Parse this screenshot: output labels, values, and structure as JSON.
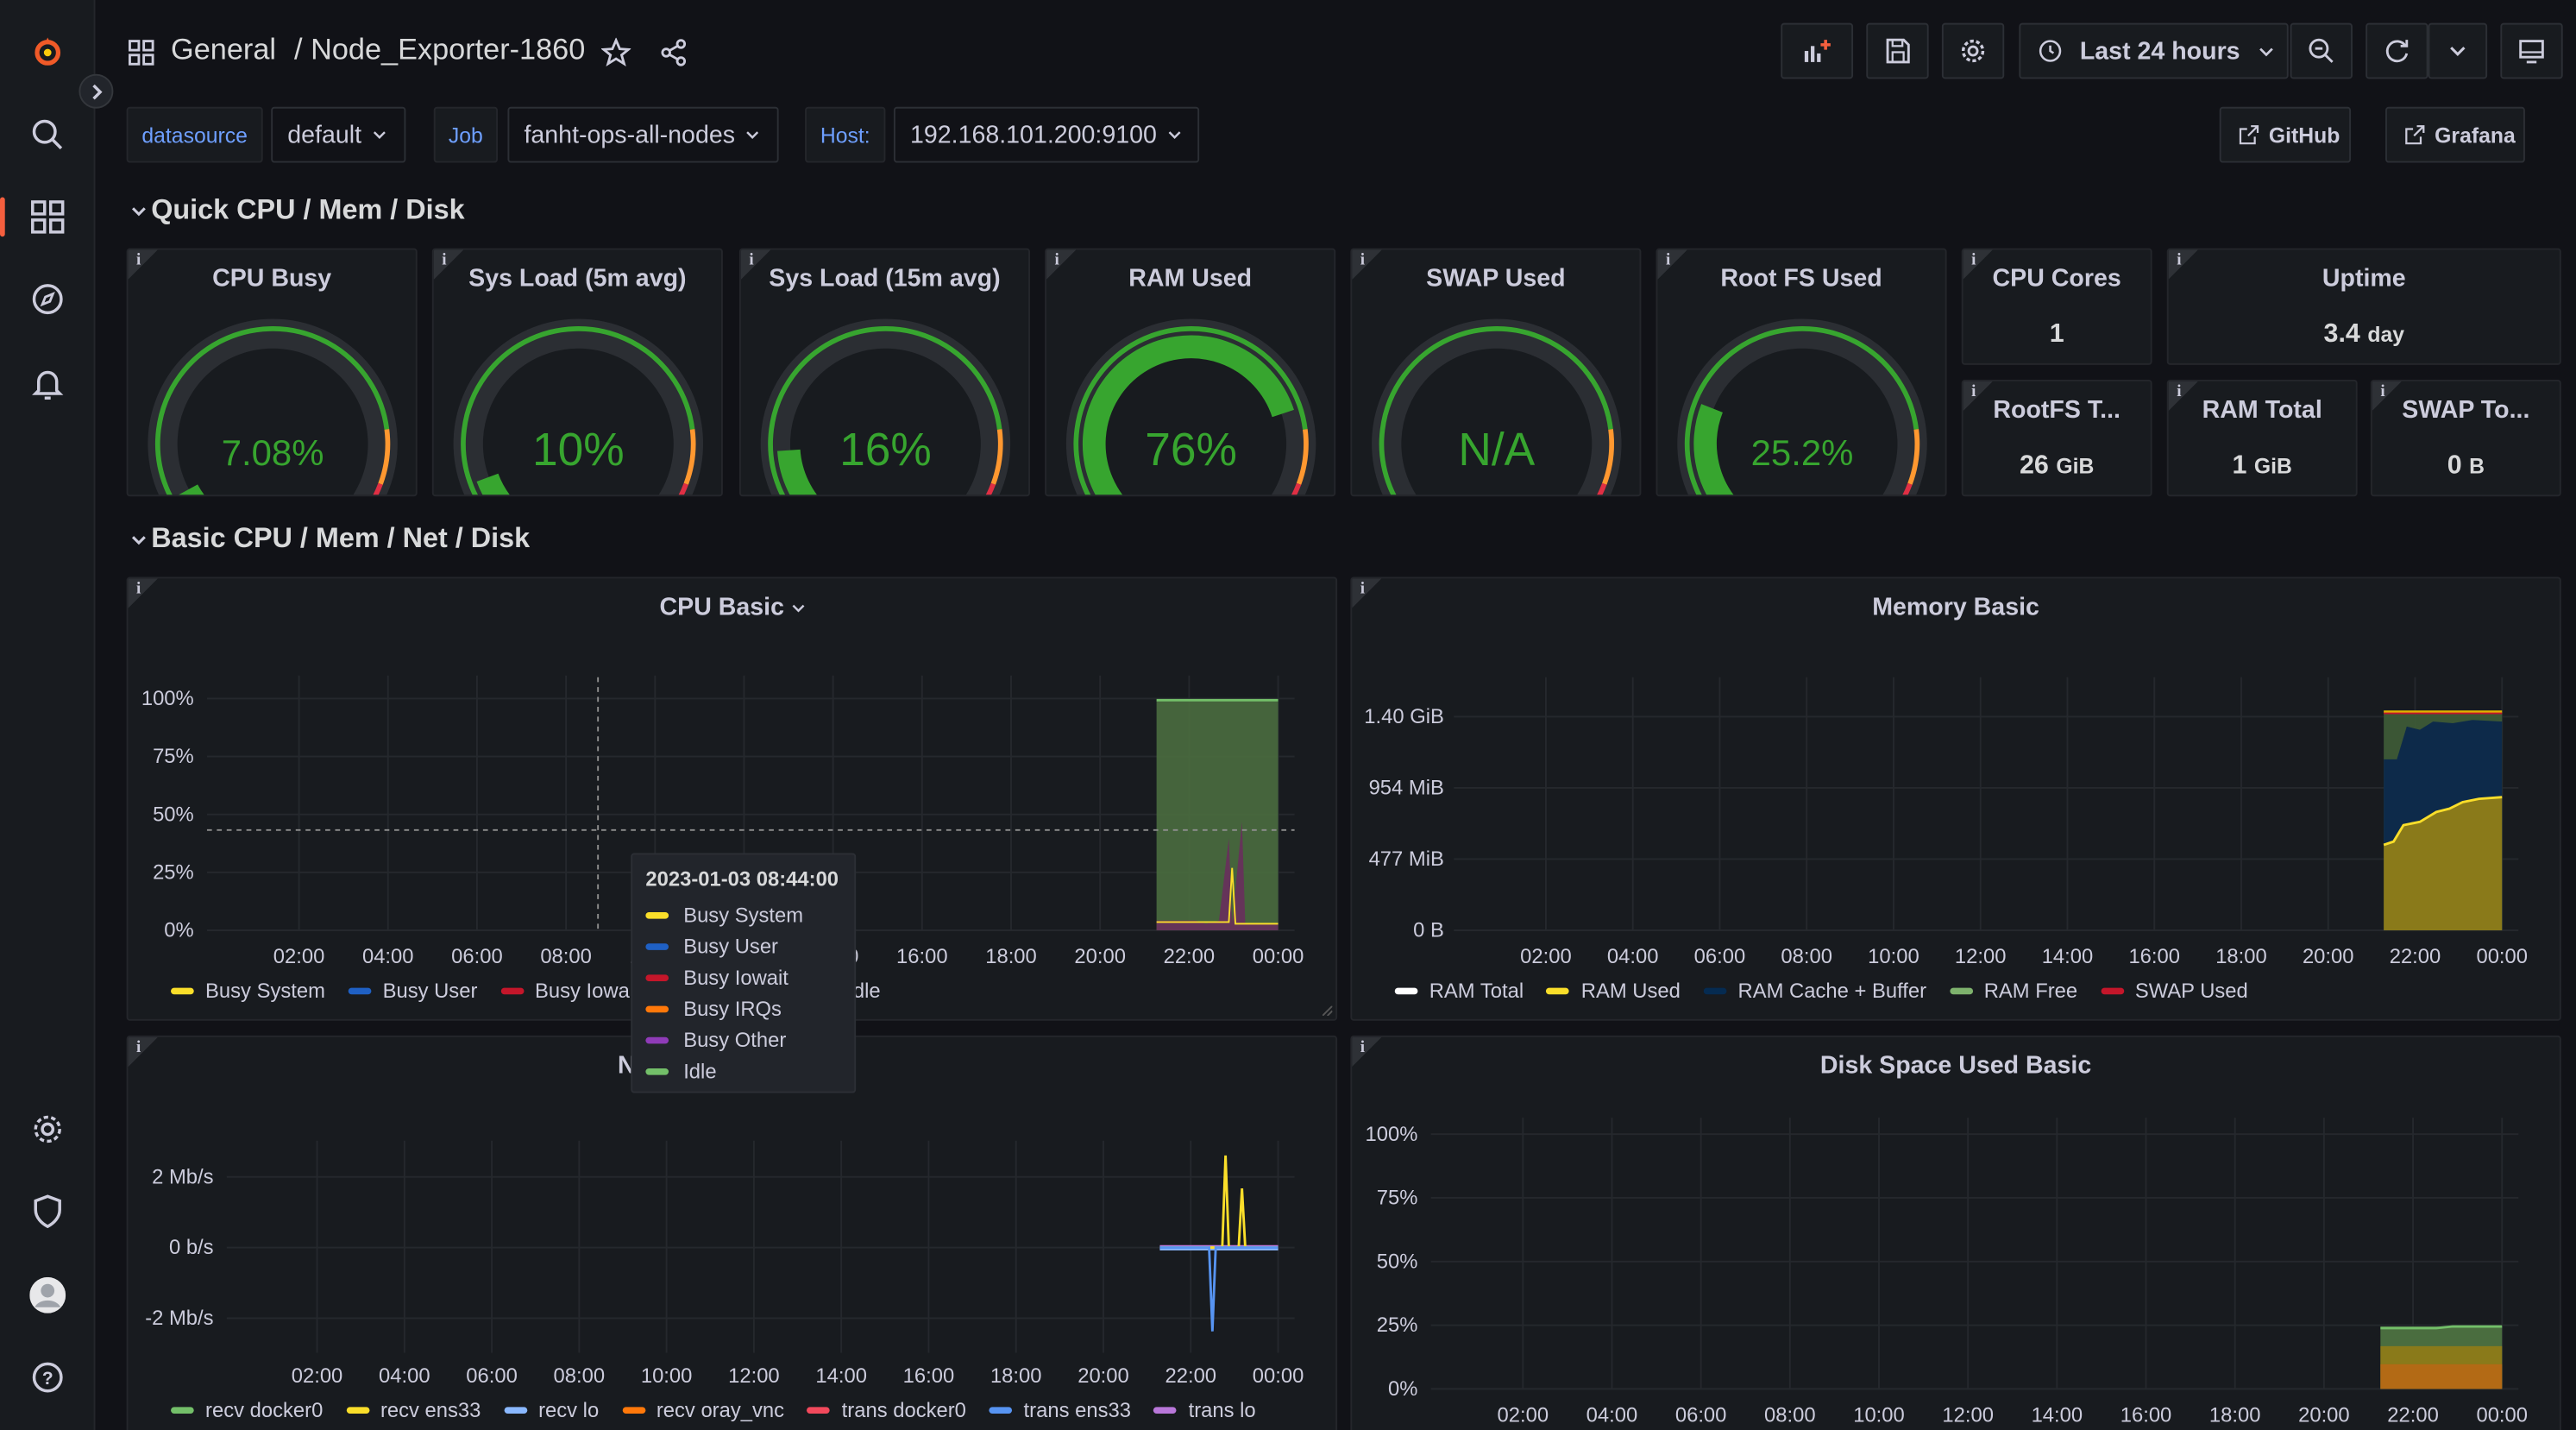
{
  "breadcrumb": {
    "folder": "General",
    "separator": "/",
    "dashboard": "Node_Exporter-1860"
  },
  "timepicker": {
    "label": "Last 24 hours"
  },
  "variables": [
    {
      "label": "datasource",
      "value": "default"
    },
    {
      "label": "Job",
      "value": "fanht-ops-all-nodes"
    },
    {
      "label": "Host:",
      "value": "192.168.101.200:9100"
    }
  ],
  "links": [
    {
      "label": "GitHub"
    },
    {
      "label": "Grafana"
    }
  ],
  "rows": {
    "quick": "Quick CPU / Mem / Disk",
    "basic": "Basic CPU / Mem / Net / Disk"
  },
  "colors": {
    "green": "#37a52f",
    "red": "#e02f44",
    "orange": "#ff9830",
    "yellow": "#fade2a",
    "blue": "#1f60c4"
  },
  "gauges": [
    {
      "title": "CPU Busy",
      "display": "7.08%",
      "value": 0.0708
    },
    {
      "title": "Sys Load (5m avg)",
      "display": "10%",
      "value": 0.1
    },
    {
      "title": "Sys Load (15m avg)",
      "display": "16%",
      "value": 0.16
    },
    {
      "title": "RAM Used",
      "display": "76%",
      "value": 0.76
    },
    {
      "title": "SWAP Used",
      "display": "N/A",
      "value": 0
    },
    {
      "title": "Root FS Used",
      "display": "25.2%",
      "value": 0.252
    }
  ],
  "stats": [
    {
      "title": "CPU Cores",
      "value": "1"
    },
    {
      "title": "Uptime",
      "value": "3.4",
      "unit": "day"
    },
    {
      "title": "RootFS T...",
      "value": "26",
      "unit": "GiB"
    },
    {
      "title": "RAM Total",
      "value": "1",
      "unit": "GiB"
    },
    {
      "title": "SWAP To...",
      "value": "0",
      "unit": "B"
    }
  ],
  "time_ticks": [
    "02:00",
    "04:00",
    "06:00",
    "08:00",
    "10:00",
    "12:00",
    "14:00",
    "16:00",
    "18:00",
    "20:00",
    "22:00",
    "00:00"
  ],
  "cpu_panel": {
    "title": "CPU Basic",
    "yticks": [
      "100%",
      "75%",
      "50%",
      "25%",
      "0%"
    ],
    "legend": [
      {
        "name": "Busy System",
        "color": "#fade2a"
      },
      {
        "name": "Busy User",
        "color": "#1f60c4"
      },
      {
        "name": "Busy Iowait",
        "color": "#c4162a"
      },
      {
        "name": "Busy IRQs",
        "color": "#ff780a"
      },
      {
        "name": "Busy Other",
        "color": "#8f3bb8"
      },
      {
        "name": "Idle",
        "color": "#73bf69"
      }
    ],
    "legend_visible": [
      "Busy System",
      "Busy User",
      "Busy Iowa",
      "",
      "Busy Other",
      "Idle"
    ]
  },
  "tooltip": {
    "time": "2023-01-03 08:44:00"
  },
  "mem_panel": {
    "title": "Memory Basic",
    "yticks": [
      "1.40 GiB",
      "954 MiB",
      "477 MiB",
      "0 B"
    ],
    "legend": [
      {
        "name": "RAM Total",
        "color": "#ffffff"
      },
      {
        "name": "RAM Used",
        "color": "#fade2a"
      },
      {
        "name": "RAM Cache + Buffer",
        "color": "#052b51"
      },
      {
        "name": "RAM Free",
        "color": "#7eb26d"
      },
      {
        "name": "SWAP Used",
        "color": "#c4162a"
      }
    ]
  },
  "net_panel": {
    "title_visible": "N",
    "yticks": [
      "2 Mb/s",
      "0 b/s",
      "-2 Mb/s"
    ],
    "legend": [
      {
        "name": "recv docker0",
        "color": "#73bf69"
      },
      {
        "name": "recv ens33",
        "color": "#fade2a"
      },
      {
        "name": "recv lo",
        "color": "#8ab8ff"
      },
      {
        "name": "recv oray_vnc",
        "color": "#ff780a"
      },
      {
        "name": "trans docker0",
        "color": "#f2495c"
      },
      {
        "name": "trans ens33",
        "color": "#5794f2"
      },
      {
        "name": "trans lo",
        "color": "#b877d9"
      }
    ]
  },
  "disk_panel": {
    "title": "Disk Space Used Basic",
    "yticks": [
      "100%",
      "75%",
      "50%",
      "25%",
      "0%"
    ]
  },
  "chart_data": [
    {
      "type": "area",
      "title": "CPU Basic",
      "x": [
        "21:30",
        "22:00",
        "22:30",
        "23:00",
        "23:30",
        "00:00"
      ],
      "series": [
        {
          "name": "Idle",
          "values": [
            100,
            95,
            96,
            94,
            95,
            95
          ]
        },
        {
          "name": "Busy System",
          "values": [
            2,
            3,
            2,
            30,
            3,
            2
          ]
        },
        {
          "name": "Busy Other",
          "values": [
            2,
            4,
            2,
            45,
            4,
            2
          ]
        }
      ],
      "ylim": [
        0,
        100
      ]
    },
    {
      "type": "area",
      "title": "Memory Basic",
      "x": [
        "21:30",
        "22:00",
        "22:30",
        "23:00",
        "23:30",
        "00:00"
      ],
      "series": [
        {
          "name": "RAM Used",
          "values": [
            400,
            500,
            560,
            600,
            620,
            640
          ]
        },
        {
          "name": "RAM Cache + Buffer",
          "values": [
            400,
            420,
            350,
            310,
            290,
            270
          ]
        }
      ],
      "ylim": [
        0,
        1.5
      ]
    },
    {
      "type": "line",
      "title": "N",
      "x": [
        "21:30",
        "22:00",
        "22:30",
        "23:00",
        "23:30",
        "00:00"
      ],
      "series": [
        {
          "name": "recv ens33",
          "values": [
            0,
            0,
            2.6,
            0,
            1.3,
            0
          ]
        },
        {
          "name": "trans ens33",
          "values": [
            0,
            0,
            -2.3,
            0,
            0,
            0
          ]
        }
      ]
    },
    {
      "type": "area",
      "title": "Disk Space Used Basic",
      "x": [
        "21:30",
        "22:00",
        "22:30",
        "23:00",
        "23:30",
        "00:00"
      ],
      "series": [
        {
          "name": "used",
          "values": [
            25,
            25,
            25,
            25,
            26,
            26
          ]
        }
      ],
      "ylim": [
        0,
        100
      ]
    }
  ]
}
